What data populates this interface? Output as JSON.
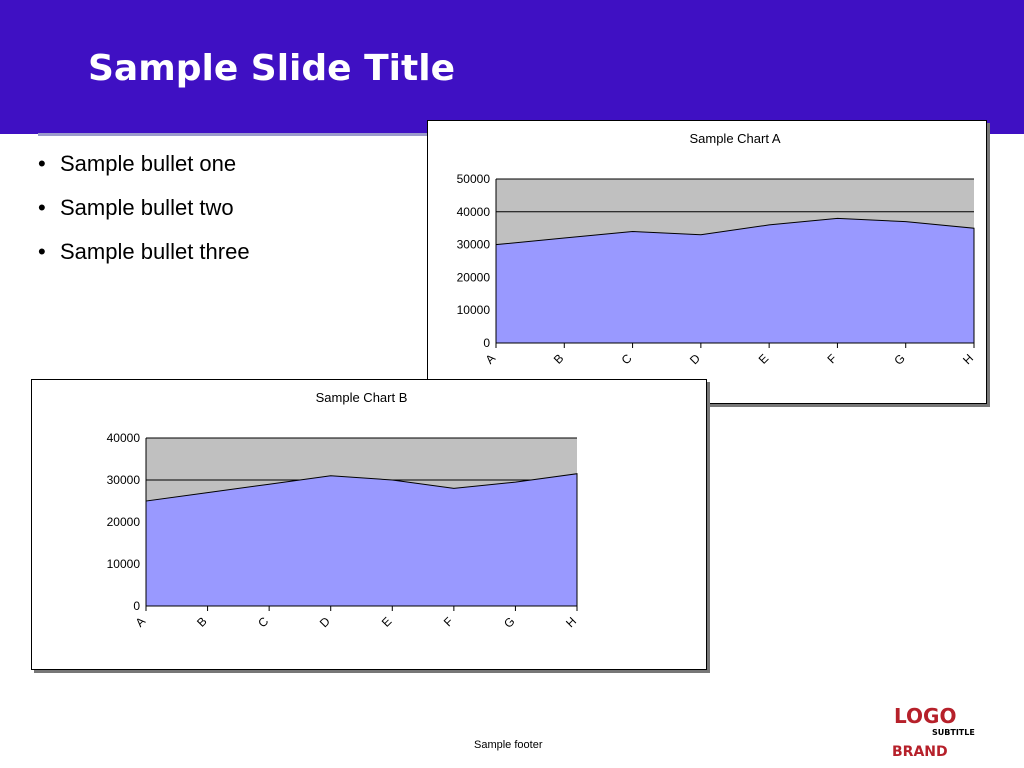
{
  "slide": {
    "title": "Sample Slide Title",
    "bullets": [
      "Sample bullet one",
      "Sample bullet two",
      "Sample bullet three"
    ],
    "footer": "Sample footer",
    "logo": {
      "main": "LOGO",
      "sub": "SUBTITLE",
      "billing": "BRAND"
    }
  },
  "colors": {
    "header": "#3f10c3",
    "area_fill": "#9999ff",
    "plot_bg": "#c0c0c0"
  },
  "chart_data": [
    {
      "type": "area",
      "title": "Sample Chart A",
      "xlabels": [
        "A",
        "B",
        "C",
        "D",
        "E",
        "F",
        "G",
        "H"
      ],
      "values": [
        30000,
        32000,
        34000,
        33000,
        36000,
        38000,
        37000,
        35000
      ],
      "ylim": [
        0,
        50000
      ],
      "yticks": [
        0,
        10000,
        20000,
        30000,
        40000,
        50000
      ],
      "grid": "horizontal"
    },
    {
      "type": "area",
      "title": "Sample Chart B",
      "xlabels": [
        "A",
        "B",
        "C",
        "D",
        "E",
        "F",
        "G",
        "H"
      ],
      "values": [
        25000,
        27000,
        29000,
        31000,
        30000,
        28000,
        29500,
        31500
      ],
      "ylim": [
        0,
        40000
      ],
      "yticks": [
        0,
        10000,
        20000,
        30000,
        40000
      ],
      "grid": "horizontal"
    }
  ]
}
